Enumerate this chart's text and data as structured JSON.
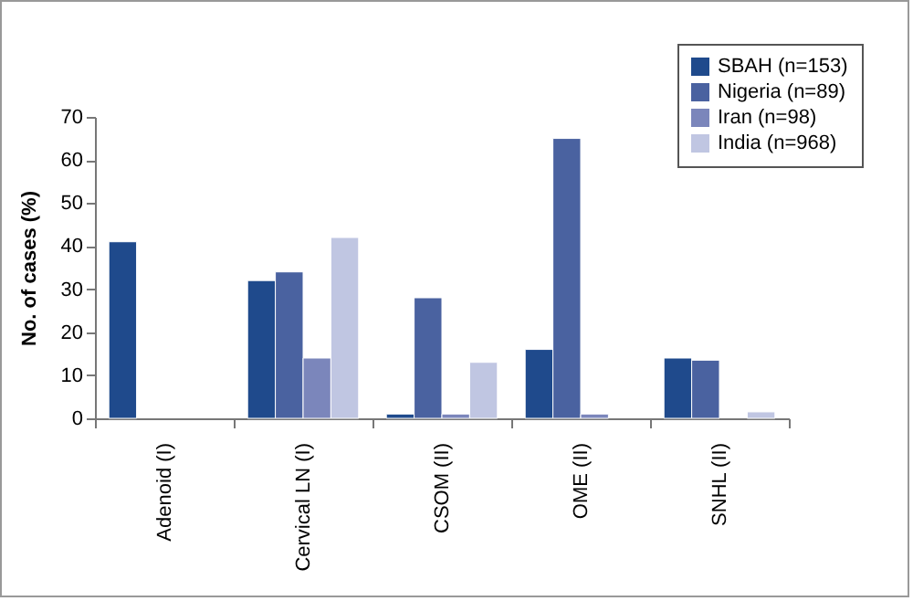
{
  "chart_data": {
    "type": "bar",
    "ylabel": "No. of cases (%)",
    "categories": [
      "Adenoid (I)",
      "Cervical LN (I)",
      "CSOM (II)",
      "OME (II)",
      "SNHL (II)"
    ],
    "series": [
      {
        "name": "SBAH (n=153)",
        "color": "#1f4a8c",
        "values": [
          41,
          32,
          1,
          16,
          14
        ]
      },
      {
        "name": "Nigeria (n=89)",
        "color": "#4a62a0",
        "values": [
          null,
          34,
          28,
          65,
          13.5
        ]
      },
      {
        "name": "Iran (n=98)",
        "color": "#7b86bb",
        "values": [
          null,
          14,
          1,
          1,
          null
        ]
      },
      {
        "name": "India (n=968)",
        "color": "#c0c6e2",
        "values": [
          null,
          42,
          13,
          null,
          1.5
        ]
      }
    ],
    "ylim": [
      0,
      70
    ],
    "yticks": [
      0,
      10,
      20,
      30,
      40,
      50,
      60,
      70
    ],
    "grid": false,
    "legend": "top right"
  }
}
